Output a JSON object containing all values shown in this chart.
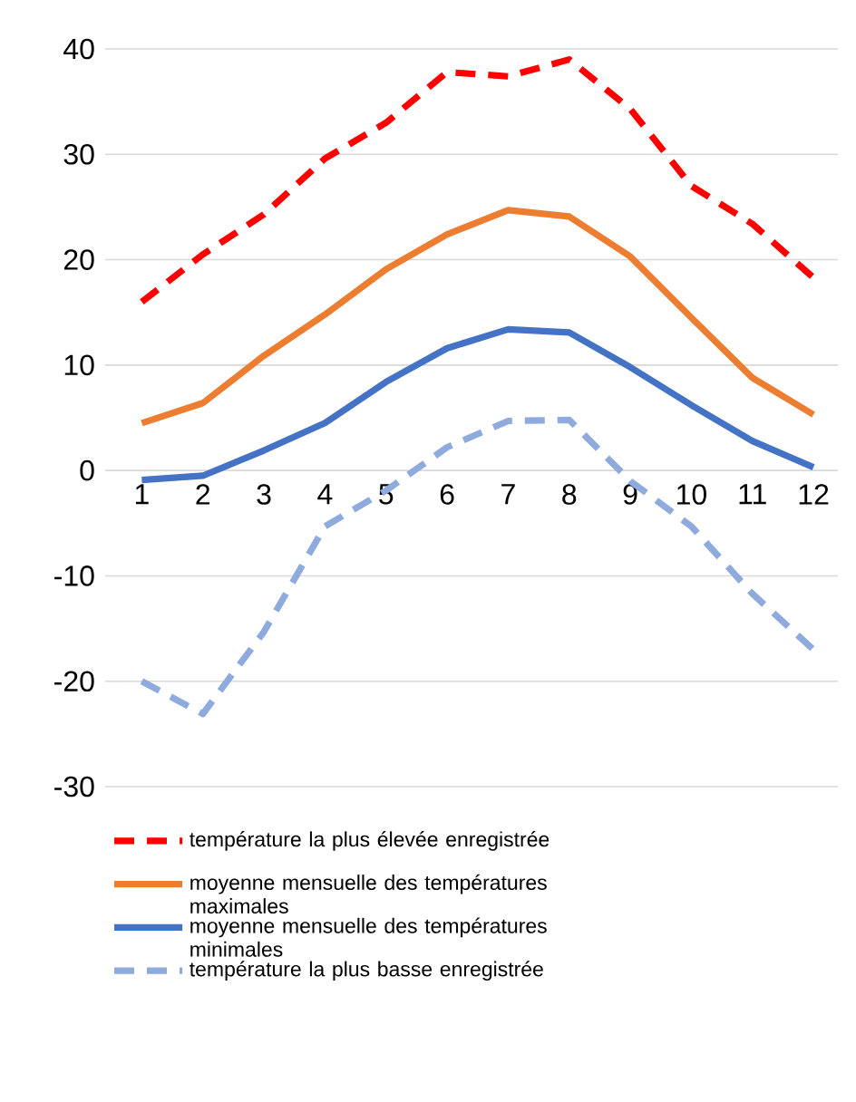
{
  "chart_data": {
    "type": "line",
    "categories": [
      "1",
      "2",
      "3",
      "4",
      "5",
      "6",
      "7",
      "8",
      "9",
      "10",
      "11",
      "12"
    ],
    "ylim": [
      -30,
      40
    ],
    "yticks": [
      -30,
      -20,
      -10,
      0,
      10,
      20,
      30,
      40
    ],
    "grid": "y",
    "legend": "bottom",
    "marker": "none",
    "series": [
      {
        "name": "température la plus élevée enregistrée",
        "color": "#ff0000",
        "line_style": "dashed",
        "values": [
          16,
          20.5,
          24.3,
          29.6,
          33,
          37.8,
          37.4,
          39,
          34.3,
          27,
          23.4,
          18.3
        ]
      },
      {
        "name": "moyenne mensuelle des températures maximales",
        "color": "#ed7d31",
        "line_style": "solid",
        "values": [
          4.5,
          6.4,
          10.9,
          14.8,
          19.1,
          22.4,
          24.7,
          24.1,
          20.3,
          14.5,
          8.8,
          5.3
        ]
      },
      {
        "name": "moyenne mensuelle des températures minimales",
        "color": "#4472c4",
        "line_style": "solid",
        "values": [
          -0.9,
          -0.5,
          1.9,
          4.5,
          8.4,
          11.6,
          13.4,
          13.1,
          9.8,
          6.2,
          2.8,
          0.3
        ]
      },
      {
        "name": "température la plus basse enregistrée",
        "color": "#8faadc",
        "line_style": "dashed",
        "values": [
          -20,
          -23.1,
          -15.3,
          -5.3,
          -1.9,
          2.2,
          4.7,
          4.8,
          -1,
          -5.3,
          -11.7,
          -17
        ]
      }
    ]
  }
}
